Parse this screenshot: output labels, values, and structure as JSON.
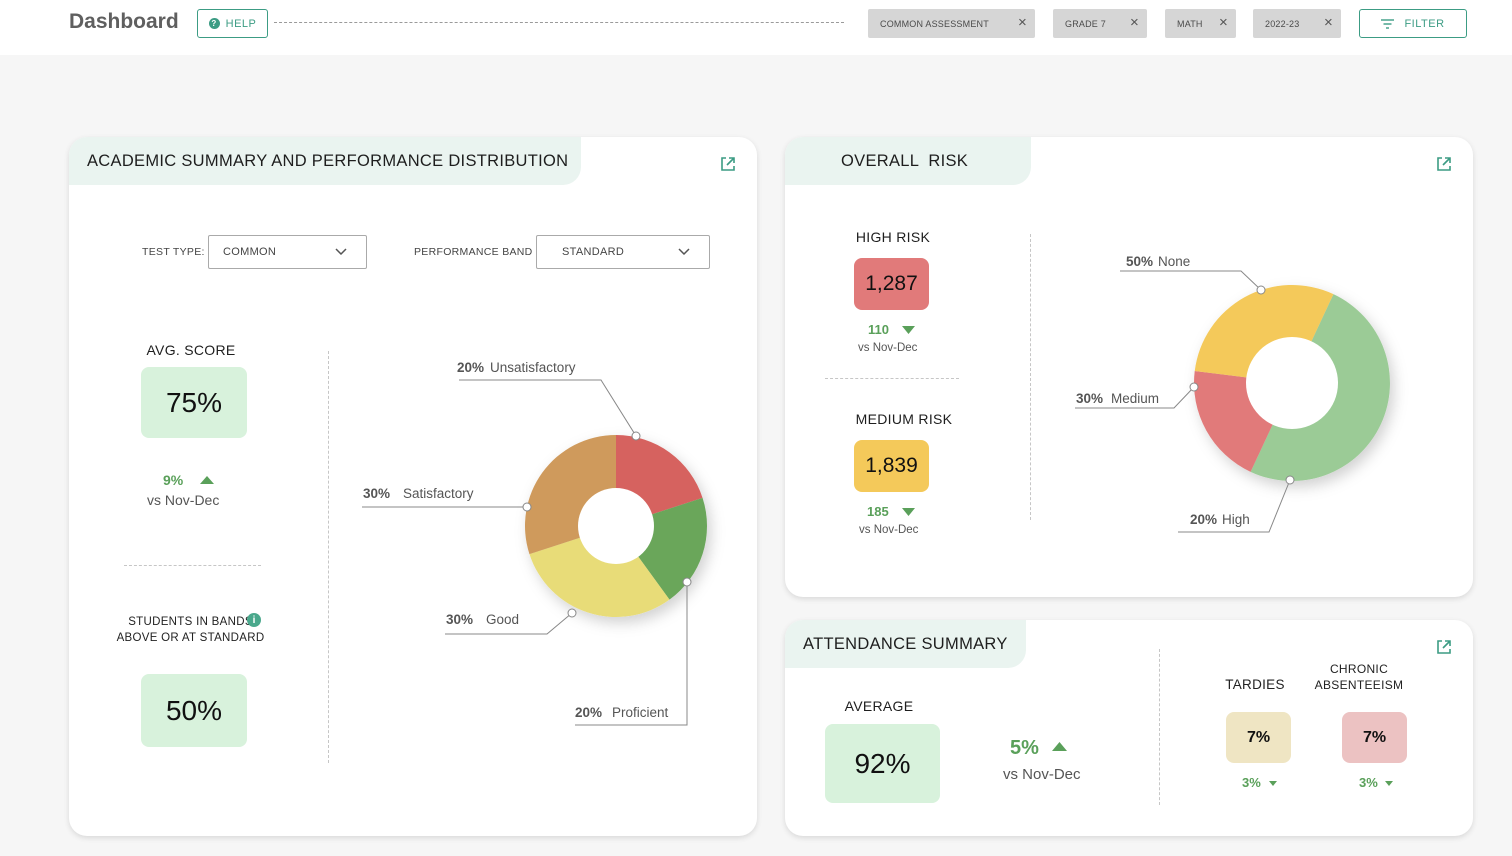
{
  "header": {
    "title": "Dashboard",
    "help_label": "HELP",
    "chips": [
      {
        "label": "COMMON ASSESSMENT"
      },
      {
        "label": "GRADE 7"
      },
      {
        "label": "MATH"
      },
      {
        "label": "2022-23"
      }
    ],
    "filter_label": "FILTER"
  },
  "academic": {
    "title": "ACADEMIC SUMMARY AND PERFORMANCE DISTRIBUTION",
    "test_type_label": "TEST TYPE:",
    "test_type_value": "COMMON",
    "band_label": "PERFORMANCE BAND",
    "band_value": "STANDARD",
    "avg_label": "AVG. SCORE",
    "avg_value": "75%",
    "avg_delta": "9%",
    "avg_delta_dir": "up",
    "avg_vs": "vs Nov-Dec",
    "bands_label_1": "STUDENTS IN BANDS",
    "bands_label_2": "ABOVE OR AT STANDARD",
    "bands_value": "50%",
    "distribution": [
      {
        "pct": "20%",
        "label": "Unsatisfactory",
        "value": 20,
        "color": "#d6625e"
      },
      {
        "pct": "20%",
        "label": "Proficient",
        "value": 20,
        "color": "#6aa65a"
      },
      {
        "pct": "30%",
        "label": "Good",
        "value": 30,
        "color": "#e8dc78"
      },
      {
        "pct": "30%",
        "label": "Satisfactory",
        "value": 30,
        "color": "#cf9a5c"
      }
    ]
  },
  "risk": {
    "title": "OVERALL  RISK",
    "high_label": "HIGH RISK",
    "high_value": "1,287",
    "high_delta": "110",
    "high_vs": "vs Nov-Dec",
    "medium_label": "MEDIUM RISK",
    "medium_value": "1,839",
    "medium_delta": "185",
    "medium_vs": "vs Nov-Dec",
    "distribution": [
      {
        "pct": "50%",
        "label": "None",
        "value": 50,
        "color": "#9bcb96"
      },
      {
        "pct": "20%",
        "label": "High",
        "value": 20,
        "color": "#e17a7a"
      },
      {
        "pct": "30%",
        "label": "Medium",
        "value": 30,
        "color": "#f4c95a"
      }
    ]
  },
  "attendance": {
    "title": "ATTENDANCE SUMMARY",
    "avg_label": "AVERAGE",
    "avg_value": "92%",
    "avg_delta": "5%",
    "avg_vs": "vs Nov-Dec",
    "tardies_label": "TARDIES",
    "tardies_value": "7%",
    "tardies_delta": "3%",
    "chronic_label_1": "CHRONIC",
    "chronic_label_2": "ABSENTEEISM",
    "chronic_value": "7%",
    "chronic_delta": "3%"
  },
  "colors": {
    "accent": "#3c9c84",
    "positive": "#5aa05a",
    "score_box": "#d8f2dc",
    "high_risk": "#e17a7a",
    "medium_risk": "#f4c95a",
    "tardies_box": "#efe5c3",
    "chronic_box": "#ecc2c2"
  }
}
